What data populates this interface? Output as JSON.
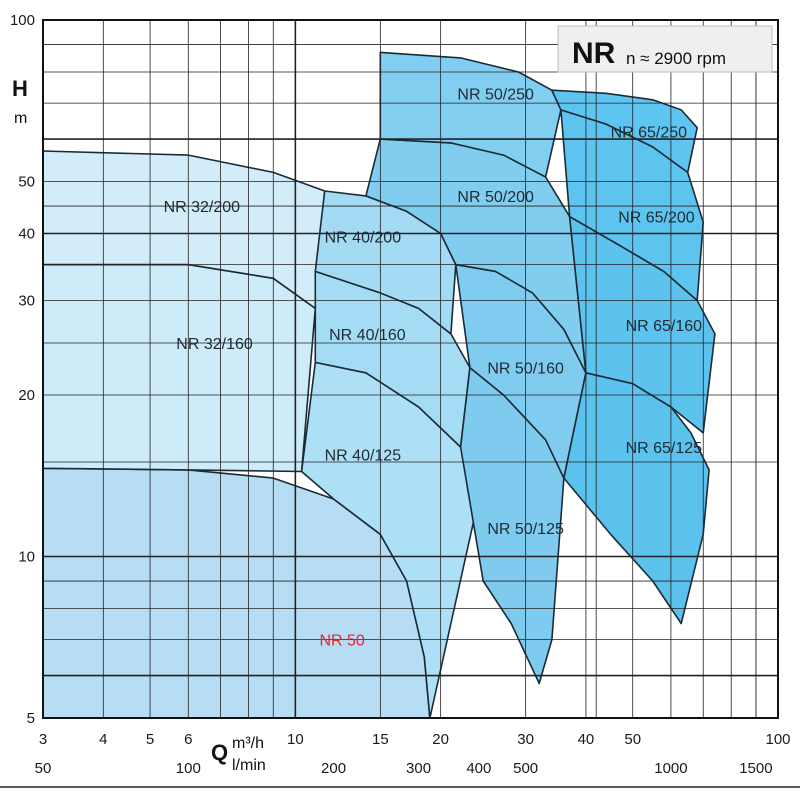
{
  "chart_data": {
    "type": "area",
    "title": "NR",
    "subtitle": "n ≈ 2900 rpm",
    "y_axis": {
      "letter": "H",
      "unit": "m",
      "scale": "log",
      "range": [
        5,
        100
      ],
      "tick_labels": [
        {
          "value": 5,
          "label": "5"
        },
        {
          "value": 10,
          "label": "10"
        },
        {
          "value": 20,
          "label": "20"
        },
        {
          "value": 30,
          "label": "30"
        },
        {
          "value": 40,
          "label": "40"
        },
        {
          "value": 50,
          "label": "50"
        },
        {
          "value": 100,
          "label": "100"
        }
      ]
    },
    "x_axis": {
      "letter": "Q",
      "scale": "log",
      "range_m3h": [
        3,
        100
      ],
      "primary_unit": "m³/h",
      "secondary_unit": "l/min",
      "primary_ticks": [
        {
          "value": 3,
          "label": "3"
        },
        {
          "value": 4,
          "label": "4"
        },
        {
          "value": 5,
          "label": "5"
        },
        {
          "value": 6,
          "label": "6"
        },
        {
          "value": 10,
          "label": "10"
        },
        {
          "value": 15,
          "label": "15"
        },
        {
          "value": 20,
          "label": "20"
        },
        {
          "value": 30,
          "label": "30"
        },
        {
          "value": 40,
          "label": "40"
        },
        {
          "value": 50,
          "label": "50"
        },
        {
          "value": 100,
          "label": "100"
        }
      ],
      "secondary_ticks": [
        {
          "value": 50,
          "label": "50"
        },
        {
          "value": 100,
          "label": "100"
        },
        {
          "value": 200,
          "label": "200"
        },
        {
          "value": 300,
          "label": "300"
        },
        {
          "value": 400,
          "label": "400"
        },
        {
          "value": 500,
          "label": "500"
        },
        {
          "value": 1000,
          "label": "1000"
        },
        {
          "value": 1500,
          "label": "1500"
        }
      ]
    },
    "grid": true,
    "series": [
      {
        "name": "NR 50",
        "fill": "#b6ddf3",
        "label_color": "#e8252b",
        "label_at": [
          12.5,
          7.0
        ],
        "outline": [
          [
            3,
            14.6
          ],
          [
            6,
            14.5
          ],
          [
            9,
            14
          ],
          [
            12,
            12.8
          ],
          [
            15,
            11
          ],
          [
            17,
            9
          ],
          [
            18.5,
            6.5
          ],
          [
            19,
            5
          ],
          [
            3,
            5
          ]
        ]
      },
      {
        "name": "NR 32/160",
        "fill": "#cdebf8",
        "label_at": [
          6.8,
          25
        ],
        "outline": [
          [
            3,
            35
          ],
          [
            6,
            35
          ],
          [
            9,
            33
          ],
          [
            11,
            29
          ],
          [
            10.3,
            14.4
          ],
          [
            6,
            14.5
          ],
          [
            3,
            14.6
          ]
        ]
      },
      {
        "name": "NR 32/200",
        "fill": "#d2edf9",
        "label_at": [
          6.4,
          45
        ],
        "outline": [
          [
            3,
            57
          ],
          [
            6,
            56
          ],
          [
            9,
            52
          ],
          [
            11.5,
            48
          ],
          [
            11,
            29
          ],
          [
            9,
            33
          ],
          [
            6,
            35
          ],
          [
            3,
            35
          ]
        ]
      },
      {
        "name": "NR 40/125",
        "fill": "#ade0f6",
        "label_at": [
          13.8,
          15.5
        ],
        "outline": [
          [
            10.3,
            14.4
          ],
          [
            11,
            23
          ],
          [
            14,
            22
          ],
          [
            18,
            19
          ],
          [
            22,
            16
          ],
          [
            24.5,
            14
          ],
          [
            21,
            7.5
          ],
          [
            19,
            5
          ],
          [
            18.5,
            6.5
          ],
          [
            17,
            9
          ],
          [
            15,
            11
          ],
          [
            12,
            12.8
          ]
        ]
      },
      {
        "name": "NR 40/160",
        "fill": "#a5dcf5",
        "label_at": [
          14.1,
          26
        ],
        "outline": [
          [
            11,
            29
          ],
          [
            11,
            34
          ],
          [
            15,
            31
          ],
          [
            18,
            29
          ],
          [
            21,
            26
          ],
          [
            23,
            22.5
          ],
          [
            22,
            16
          ],
          [
            18,
            19
          ],
          [
            14,
            22
          ],
          [
            11,
            23
          ]
        ]
      },
      {
        "name": "NR 40/200",
        "fill": "#a3daf4",
        "label_at": [
          13.8,
          39.5
        ],
        "outline": [
          [
            11.5,
            48
          ],
          [
            14,
            47
          ],
          [
            17,
            44
          ],
          [
            20,
            40
          ],
          [
            21.5,
            35
          ],
          [
            21,
            26
          ],
          [
            18,
            29
          ],
          [
            15,
            31
          ],
          [
            11,
            34
          ]
        ]
      },
      {
        "name": "NR 50/125",
        "fill": "#7ecbef",
        "label_at": [
          30,
          11.3
        ],
        "outline": [
          [
            22,
            16
          ],
          [
            23,
            22.5
          ],
          [
            27,
            20
          ],
          [
            33,
            16.5
          ],
          [
            36,
            14
          ],
          [
            34,
            7
          ],
          [
            32,
            5.8
          ],
          [
            28,
            7.5
          ],
          [
            24.5,
            9
          ]
        ]
      },
      {
        "name": "NR 50/160",
        "fill": "#7fccf0",
        "label_at": [
          30,
          22.5
        ],
        "outline": [
          [
            21.5,
            35
          ],
          [
            26,
            34
          ],
          [
            31,
            31
          ],
          [
            36,
            26.5
          ],
          [
            40,
            22
          ],
          [
            36,
            14
          ],
          [
            33,
            16.5
          ],
          [
            27,
            20
          ],
          [
            23,
            22.5
          ]
        ]
      },
      {
        "name": "NR 50/200",
        "fill": "#80cdf0",
        "label_at": [
          26,
          47
        ],
        "outline": [
          [
            15,
            60
          ],
          [
            21,
            59
          ],
          [
            27,
            56
          ],
          [
            33,
            51
          ],
          [
            37,
            43
          ],
          [
            40,
            22
          ],
          [
            36,
            26.5
          ],
          [
            31,
            31
          ],
          [
            26,
            34
          ],
          [
            21.5,
            35
          ],
          [
            20,
            40
          ],
          [
            17,
            44
          ],
          [
            14,
            47
          ]
        ]
      },
      {
        "name": "NR 50/250",
        "fill": "#81cef1",
        "label_at": [
          26,
          73
        ],
        "outline": [
          [
            15,
            87
          ],
          [
            22,
            85
          ],
          [
            29,
            80
          ],
          [
            34,
            74
          ],
          [
            35.5,
            68
          ],
          [
            33,
            51
          ],
          [
            27,
            56
          ],
          [
            21,
            59
          ],
          [
            15,
            60
          ]
        ]
      },
      {
        "name": "NR 65/125",
        "fill": "#5bc2ee",
        "label_at": [
          58,
          16
        ],
        "outline": [
          [
            40,
            22
          ],
          [
            50,
            21
          ],
          [
            60,
            19
          ],
          [
            66,
            17
          ],
          [
            72,
            14.5
          ],
          [
            70,
            11
          ],
          [
            63,
            7.5
          ],
          [
            55,
            9
          ],
          [
            45,
            11
          ],
          [
            36,
            14
          ]
        ]
      },
      {
        "name": "NR 65/160",
        "fill": "#5cc3ef",
        "label_at": [
          58,
          27
        ],
        "outline": [
          [
            37,
            43
          ],
          [
            47,
            38
          ],
          [
            58,
            34
          ],
          [
            68,
            30
          ],
          [
            74,
            26
          ],
          [
            70,
            17
          ],
          [
            60,
            19
          ],
          [
            50,
            21
          ],
          [
            40,
            22
          ]
        ]
      },
      {
        "name": "NR 65/200",
        "fill": "#5dc4ef",
        "label_at": [
          56,
          43
        ],
        "outline": [
          [
            35.5,
            68
          ],
          [
            44,
            64
          ],
          [
            55,
            58
          ],
          [
            65,
            52
          ],
          [
            70,
            42
          ],
          [
            68,
            30
          ],
          [
            58,
            34
          ],
          [
            47,
            38
          ],
          [
            37,
            43
          ]
        ]
      },
      {
        "name": "NR 65/250",
        "fill": "#5ec5f0",
        "label_at": [
          54,
          62
        ],
        "outline": [
          [
            34,
            74
          ],
          [
            44,
            73
          ],
          [
            55,
            71
          ],
          [
            63,
            68
          ],
          [
            68,
            63
          ],
          [
            65,
            52
          ],
          [
            55,
            58
          ],
          [
            44,
            64
          ],
          [
            35.5,
            68
          ]
        ]
      }
    ]
  }
}
